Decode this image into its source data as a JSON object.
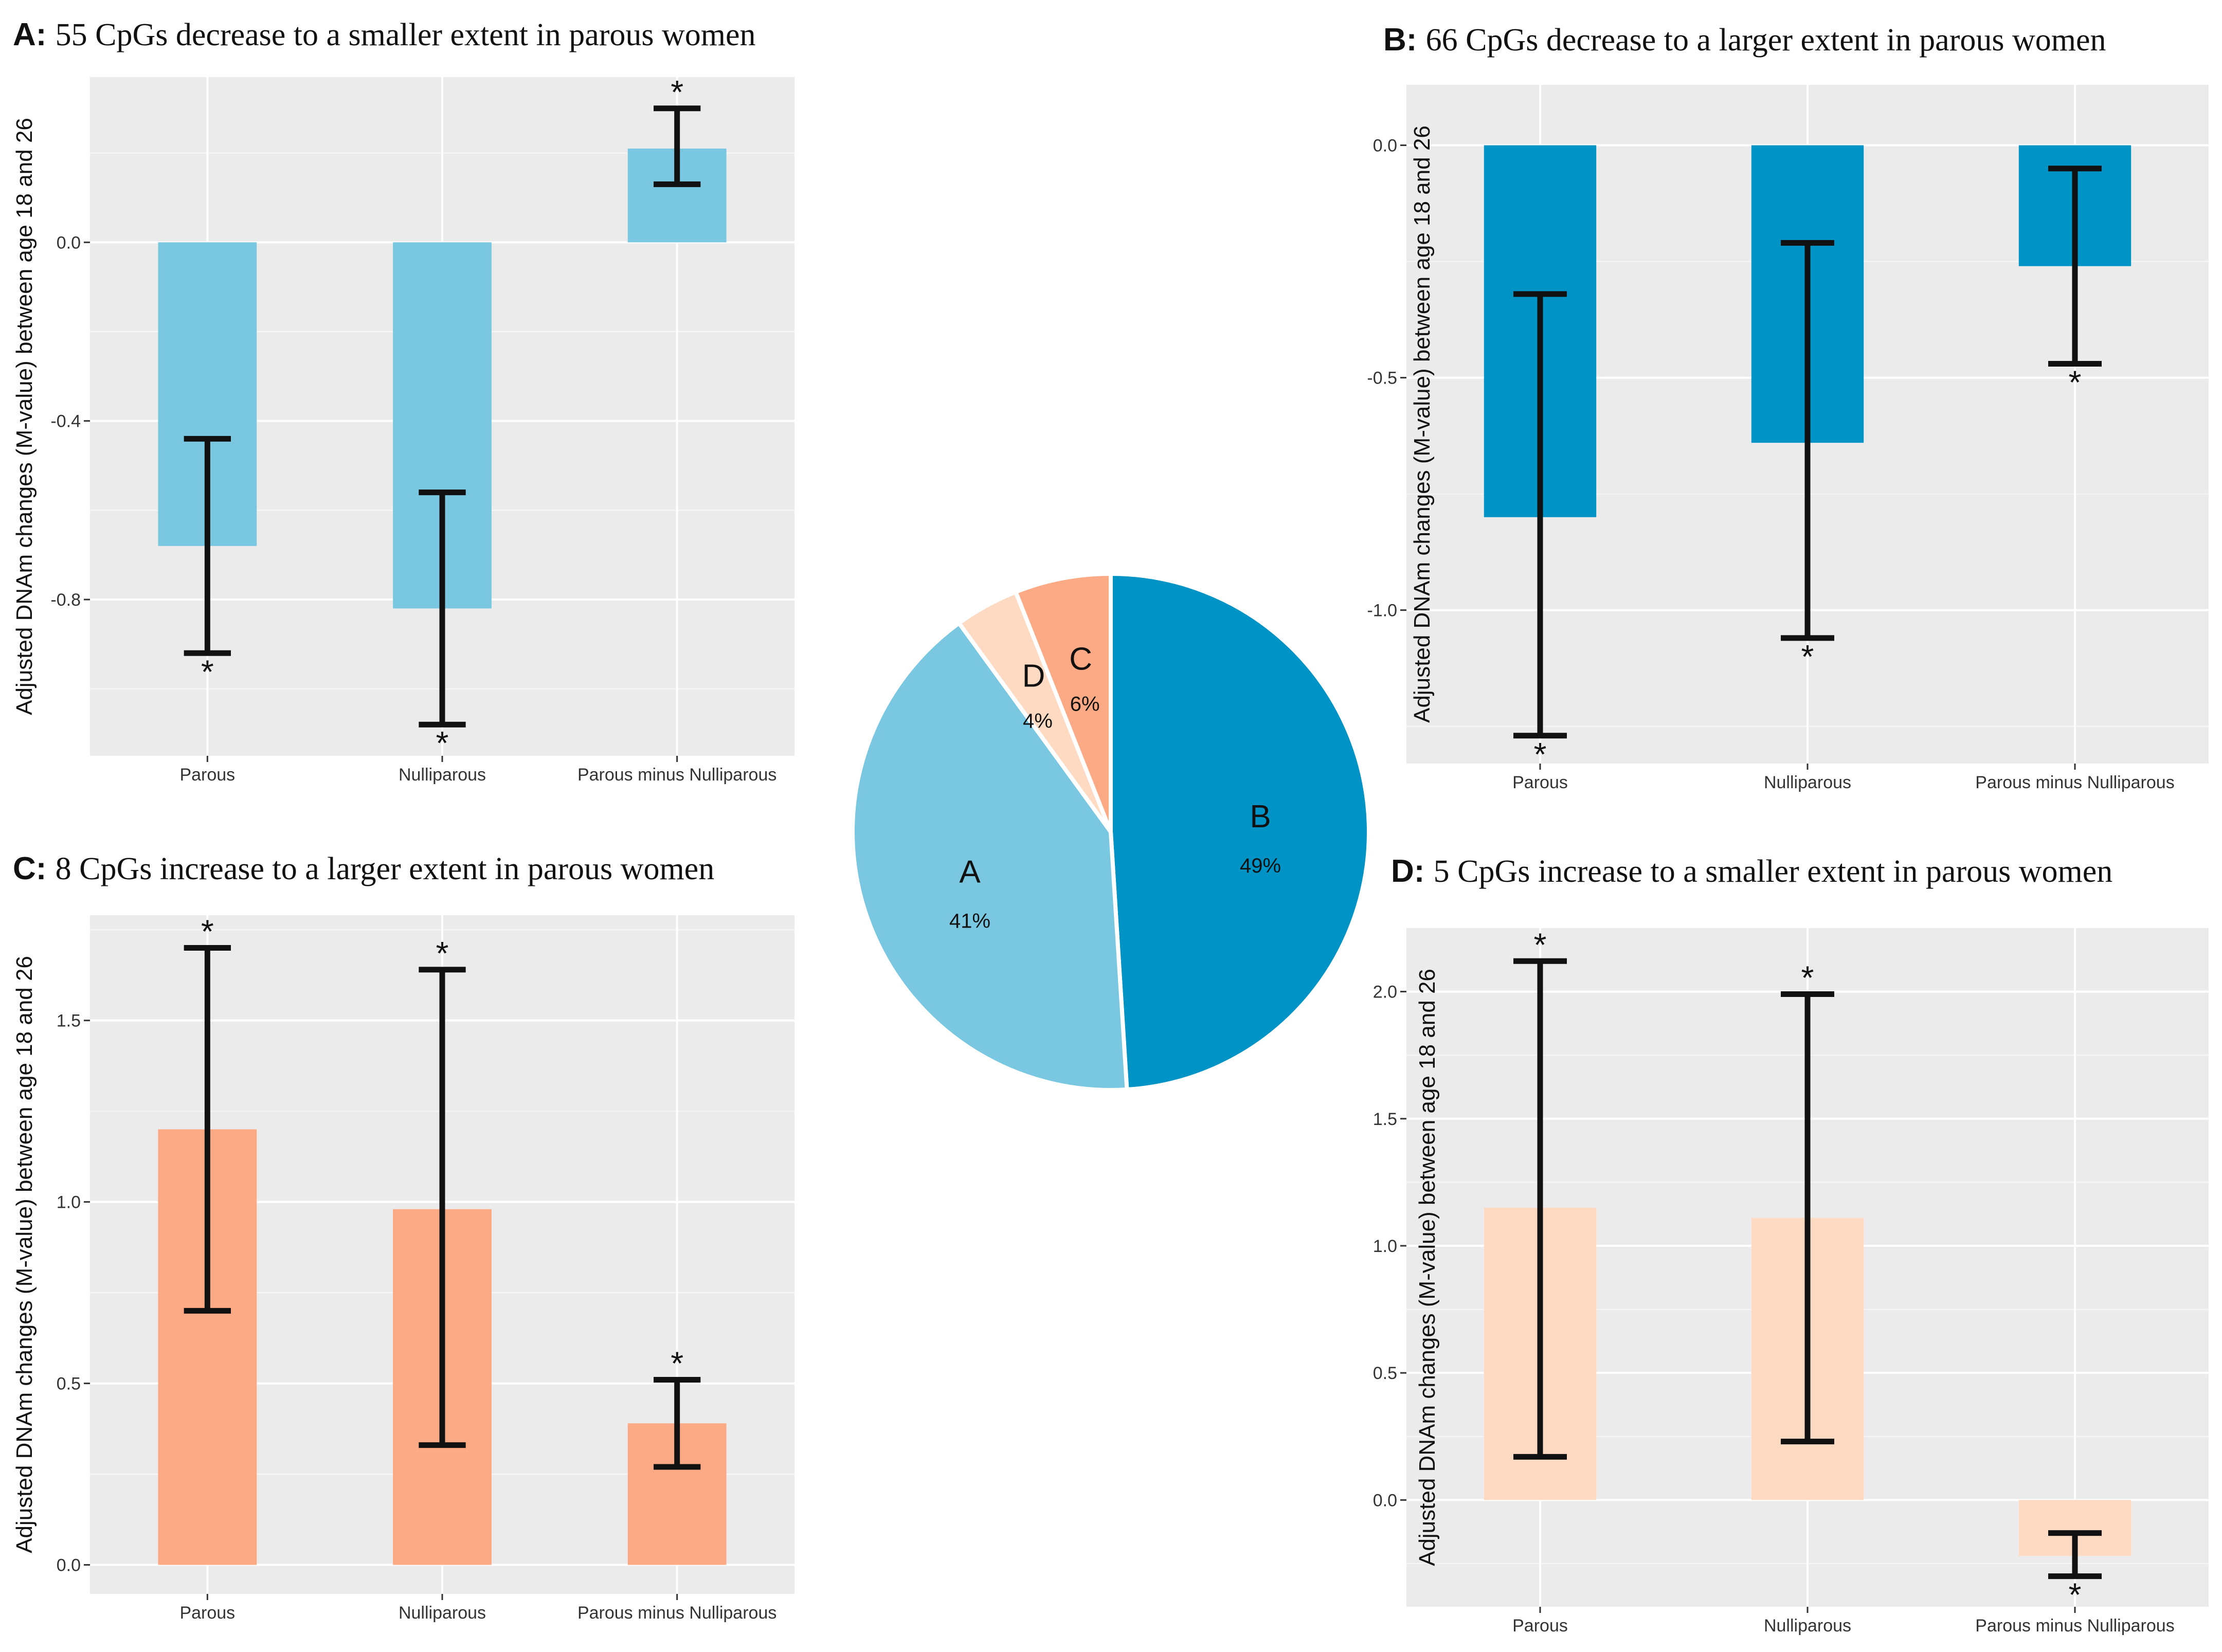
{
  "chart_data": [
    {
      "panel": "A",
      "type": "bar",
      "title_letter": "A:",
      "title": "55 CpGs decrease to a smaller extent in parous women",
      "xlabel": "",
      "ylabel": "Adjusted DNAm changes (M-value) between age 18 and 26",
      "ylim": [
        -1.15,
        0.37
      ],
      "yticks": [
        0.0,
        -0.4,
        -0.8
      ],
      "ytick_labels": [
        "0.0",
        "-0.4",
        "-0.8"
      ],
      "categories": [
        "Parous",
        "Nulliparous",
        "Parous minus Nulliparous"
      ],
      "values": [
        -0.68,
        -0.82,
        0.21
      ],
      "ci_low": [
        -0.92,
        -1.08,
        0.13
      ],
      "ci_high": [
        -0.44,
        -0.56,
        0.3
      ],
      "significance": [
        "*",
        "*",
        "*"
      ],
      "color": "#79C7E0"
    },
    {
      "panel": "B",
      "type": "bar",
      "title_letter": "B:",
      "title": "66 CpGs decrease to a larger extent in parous women",
      "xlabel": "",
      "ylabel": "Adjusted DNAm changes (M-value) between age 18 and 26",
      "ylim": [
        -1.33,
        0.13
      ],
      "yticks": [
        0.0,
        -0.5,
        -1.0
      ],
      "ytick_labels": [
        "0.0",
        "-0.5",
        "-1.0"
      ],
      "categories": [
        "Parous",
        "Nulliparous",
        "Parous minus Nulliparous"
      ],
      "values": [
        -0.8,
        -0.64,
        -0.26
      ],
      "ci_low": [
        -1.27,
        -1.06,
        -0.47
      ],
      "ci_high": [
        -0.32,
        -0.21,
        -0.05
      ],
      "significance": [
        "*",
        "*",
        "*"
      ],
      "color": "#0093C6"
    },
    {
      "panel": "C",
      "type": "bar",
      "title_letter": "C:",
      "title": "8 CpGs increase to a larger extent in parous women",
      "xlabel": "",
      "ylabel": "Adjusted DNAm changes (M-value) between age 18 and 26",
      "ylim": [
        -0.08,
        1.79
      ],
      "yticks": [
        0.0,
        0.5,
        1.0,
        1.5
      ],
      "ytick_labels": [
        "0.0",
        "0.5",
        "1.0",
        "1.5"
      ],
      "categories": [
        "Parous",
        "Nulliparous",
        "Parous minus Nulliparous"
      ],
      "values": [
        1.2,
        0.98,
        0.39
      ],
      "ci_low": [
        0.7,
        0.33,
        0.27
      ],
      "ci_high": [
        1.7,
        1.64,
        0.51
      ],
      "significance": [
        "*",
        "*",
        "*"
      ],
      "color": "#FCAA85"
    },
    {
      "panel": "D",
      "type": "bar",
      "title_letter": "D:",
      "title": "5 CpGs increase to a smaller extent in parous women",
      "xlabel": "",
      "ylabel": "Adjusted DNAm changes (M-value) between age 18 and 26",
      "ylim": [
        -0.42,
        2.25
      ],
      "yticks": [
        0.0,
        0.5,
        1.0,
        1.5,
        2.0
      ],
      "ytick_labels": [
        "0.0",
        "0.5",
        "1.0",
        "1.5",
        "2.0"
      ],
      "categories": [
        "Parous",
        "Nulliparous",
        "Parous minus Nulliparous"
      ],
      "values": [
        1.15,
        1.11,
        -0.22
      ],
      "ci_low": [
        0.17,
        0.23,
        -0.3
      ],
      "ci_high": [
        2.12,
        1.99,
        -0.13
      ],
      "significance": [
        "*",
        "*",
        "*"
      ],
      "color": "#FFDAC2"
    },
    {
      "panel": "pie",
      "type": "pie",
      "title": "",
      "slices": [
        {
          "label": "B",
          "percent_label": "49%",
          "value": 49,
          "color": "#0093C6"
        },
        {
          "label": "A",
          "percent_label": "41%",
          "value": 41,
          "color": "#79C7E0"
        },
        {
          "label": "D",
          "percent_label": "4%",
          "value": 4,
          "color": "#FFDAC2"
        },
        {
          "label": "C",
          "percent_label": "6%",
          "value": 6,
          "color": "#FCAA85"
        }
      ]
    }
  ]
}
